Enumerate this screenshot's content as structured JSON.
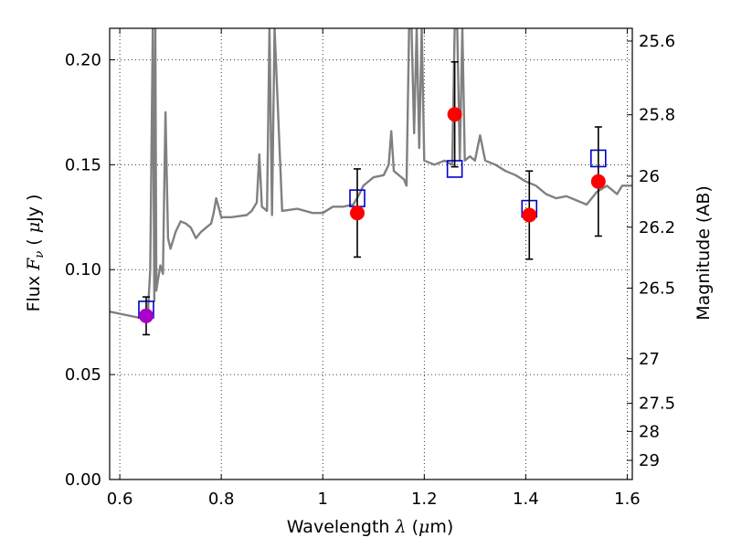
{
  "chart_data": {
    "type": "scatter",
    "title": "",
    "xlabel": "Wavelength  λ (μm)",
    "ylabel": "Flux  Fν  ( μJy )",
    "ylabel_right": "Magnitude (AB)",
    "xlim": [
      0.58,
      1.61
    ],
    "ylim": [
      0.0,
      0.215
    ],
    "grid": true,
    "x_ticks": [
      {
        "value": 0.6,
        "label": "0.6"
      },
      {
        "value": 0.8,
        "label": "0.8"
      },
      {
        "value": 1.0,
        "label": "1"
      },
      {
        "value": 1.2,
        "label": "1.2"
      },
      {
        "value": 1.4,
        "label": "1.4"
      },
      {
        "value": 1.6,
        "label": "1.6"
      }
    ],
    "y_ticks": [
      {
        "value": 0.0,
        "label": "0.00"
      },
      {
        "value": 0.05,
        "label": "0.05"
      },
      {
        "value": 0.1,
        "label": "0.10"
      },
      {
        "value": 0.15,
        "label": "0.15"
      },
      {
        "value": 0.2,
        "label": "0.20"
      }
    ],
    "right_ticks": [
      {
        "mag": 25.6,
        "label": "25.6"
      },
      {
        "mag": 25.8,
        "label": "25.8"
      },
      {
        "mag": 26.0,
        "label": "26"
      },
      {
        "mag": 26.2,
        "label": "26.2"
      },
      {
        "mag": 26.5,
        "label": "26.5"
      },
      {
        "mag": 27.0,
        "label": "27"
      },
      {
        "mag": 27.5,
        "label": "27.5"
      },
      {
        "mag": 28.0,
        "label": "28"
      },
      {
        "mag": 29.0,
        "label": "29"
      }
    ],
    "series": [
      {
        "kind": "line",
        "color": "#808080",
        "x": [
          0.58,
          0.6,
          0.62,
          0.64,
          0.655,
          0.66,
          0.665,
          0.668,
          0.67,
          0.672,
          0.675,
          0.68,
          0.685,
          0.69,
          0.695,
          0.7,
          0.71,
          0.72,
          0.73,
          0.74,
          0.75,
          0.76,
          0.77,
          0.78,
          0.785,
          0.79,
          0.8,
          0.82,
          0.85,
          0.86,
          0.87,
          0.875,
          0.88,
          0.89,
          0.895,
          0.9,
          0.905,
          0.92,
          0.95,
          0.98,
          1.0,
          1.02,
          1.04,
          1.06,
          1.07,
          1.08,
          1.1,
          1.12,
          1.13,
          1.135,
          1.14,
          1.16,
          1.165,
          1.17,
          1.175,
          1.18,
          1.185,
          1.19,
          1.195,
          1.2,
          1.22,
          1.24,
          1.255,
          1.26,
          1.265,
          1.27,
          1.275,
          1.28,
          1.29,
          1.3,
          1.31,
          1.32,
          1.34,
          1.36,
          1.38,
          1.4,
          1.42,
          1.44,
          1.46,
          1.48,
          1.5,
          1.52,
          1.54,
          1.56,
          1.58,
          1.59,
          1.61
        ],
        "y": [
          0.08,
          0.079,
          0.078,
          0.077,
          0.078,
          0.1,
          0.215,
          0.085,
          0.215,
          0.09,
          0.095,
          0.102,
          0.098,
          0.175,
          0.115,
          0.11,
          0.118,
          0.123,
          0.122,
          0.12,
          0.115,
          0.118,
          0.12,
          0.122,
          0.127,
          0.134,
          0.125,
          0.125,
          0.126,
          0.128,
          0.132,
          0.155,
          0.13,
          0.128,
          0.215,
          0.126,
          0.215,
          0.128,
          0.129,
          0.127,
          0.127,
          0.13,
          0.13,
          0.131,
          0.135,
          0.14,
          0.144,
          0.145,
          0.15,
          0.166,
          0.147,
          0.143,
          0.14,
          0.215,
          0.215,
          0.165,
          0.215,
          0.158,
          0.215,
          0.152,
          0.15,
          0.152,
          0.15,
          0.215,
          0.215,
          0.152,
          0.215,
          0.152,
          0.154,
          0.152,
          0.164,
          0.152,
          0.15,
          0.147,
          0.145,
          0.142,
          0.14,
          0.136,
          0.134,
          0.135,
          0.133,
          0.131,
          0.137,
          0.14,
          0.136,
          0.14,
          0.14
        ]
      },
      {
        "kind": "open-square",
        "color": "#0000cc",
        "x": [
          0.652,
          1.068,
          1.26,
          1.407,
          1.543
        ],
        "y": [
          0.081,
          0.134,
          0.148,
          0.129,
          0.153
        ]
      },
      {
        "kind": "filled-circle-errorbar",
        "color": "#ff0000",
        "x": [
          1.068,
          1.26,
          1.407,
          1.543
        ],
        "y": [
          0.127,
          0.174,
          0.126,
          0.142
        ],
        "yerr": [
          0.021,
          0.025,
          0.021,
          0.026
        ]
      },
      {
        "kind": "filled-circle-errorbar",
        "color": "#aa00cc",
        "x": [
          0.652
        ],
        "y": [
          0.078
        ],
        "yerr": [
          0.009
        ]
      }
    ]
  }
}
